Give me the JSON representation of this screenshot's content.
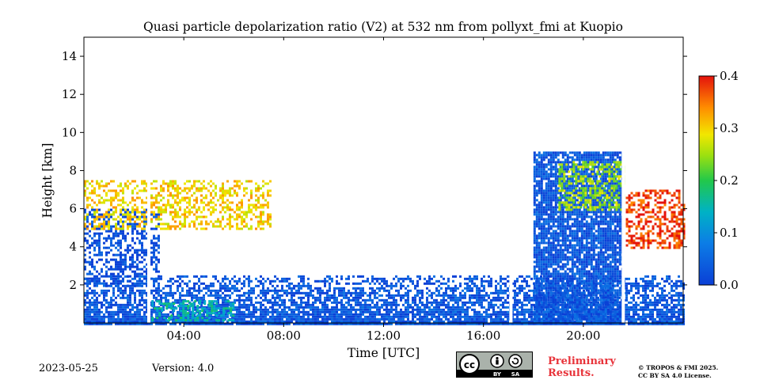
{
  "chart_data": {
    "type": "heatmap",
    "title": "Quasi particle depolarization ratio (V2) at 532 nm from pollyxt_fmi at Kuopio",
    "xlabel": "Time [UTC]",
    "ylabel": "Height [km]",
    "x_range_hours": [
      0,
      24
    ],
    "x_ticks": [
      {
        "hour": 4,
        "label": "04:00"
      },
      {
        "hour": 8,
        "label": "08:00"
      },
      {
        "hour": 12,
        "label": "12:00"
      },
      {
        "hour": 16,
        "label": "16:00"
      },
      {
        "hour": 20,
        "label": "20:00"
      }
    ],
    "ylim": [
      0,
      15
    ],
    "y_ticks": [
      {
        "value": 2,
        "label": "2"
      },
      {
        "value": 4,
        "label": "4"
      },
      {
        "value": 6,
        "label": "6"
      },
      {
        "value": 8,
        "label": "8"
      },
      {
        "value": 10,
        "label": "10"
      },
      {
        "value": 12,
        "label": "12"
      },
      {
        "value": 14,
        "label": "14"
      }
    ],
    "colorbar": {
      "range": [
        0.0,
        0.4
      ],
      "ticks": [
        {
          "value": 0.0,
          "label": "0.0"
        },
        {
          "value": 0.1,
          "label": "0.1"
        },
        {
          "value": 0.2,
          "label": "0.2"
        },
        {
          "value": 0.3,
          "label": "0.3"
        },
        {
          "value": 0.4,
          "label": "0.4"
        }
      ],
      "colormap": "jet"
    },
    "grid": false,
    "data_gaps_hours": [
      2.6,
      17.1,
      21.6
    ],
    "features": [
      {
        "desc": "boundary layer",
        "hours": [
          0,
          24
        ],
        "height_km": [
          0,
          2.5
        ],
        "depol": 0.03
      },
      {
        "desc": "residual layer",
        "hours": [
          0,
          3
        ],
        "height_km": [
          2,
          6
        ],
        "depol": 0.02
      },
      {
        "desc": "elevated layer",
        "hours": [
          0,
          7.5
        ],
        "height_km": [
          5,
          7.5
        ],
        "depol": 0.3
      },
      {
        "desc": "near-surface aerosol",
        "hours": [
          2.7,
          6.0
        ],
        "height_km": [
          0.2,
          1.2
        ],
        "depol": 0.15
      },
      {
        "desc": "cloud / aerosol rising",
        "hours": [
          18,
          21.6
        ],
        "height_km": [
          0,
          9
        ],
        "depol": 0.03
      },
      {
        "desc": "cloud top",
        "hours": [
          19,
          21.6
        ],
        "height_km": [
          6,
          8.5
        ],
        "depol": 0.25
      },
      {
        "desc": "ice cloud",
        "hours": [
          21.7,
          24
        ],
        "height_km": [
          4,
          7
        ],
        "depol": 0.38
      }
    ]
  },
  "footer": {
    "date": "2023-05-25",
    "version": "Version: 4.0",
    "preliminary_line1": "Preliminary",
    "preliminary_line2": "Results.",
    "copyright_line1": "© TROPOS & FMI 2025.",
    "copyright_line2": "CC BY SA 4.0 License.",
    "cc_labels": [
      "cc",
      "BY",
      "SA"
    ]
  }
}
